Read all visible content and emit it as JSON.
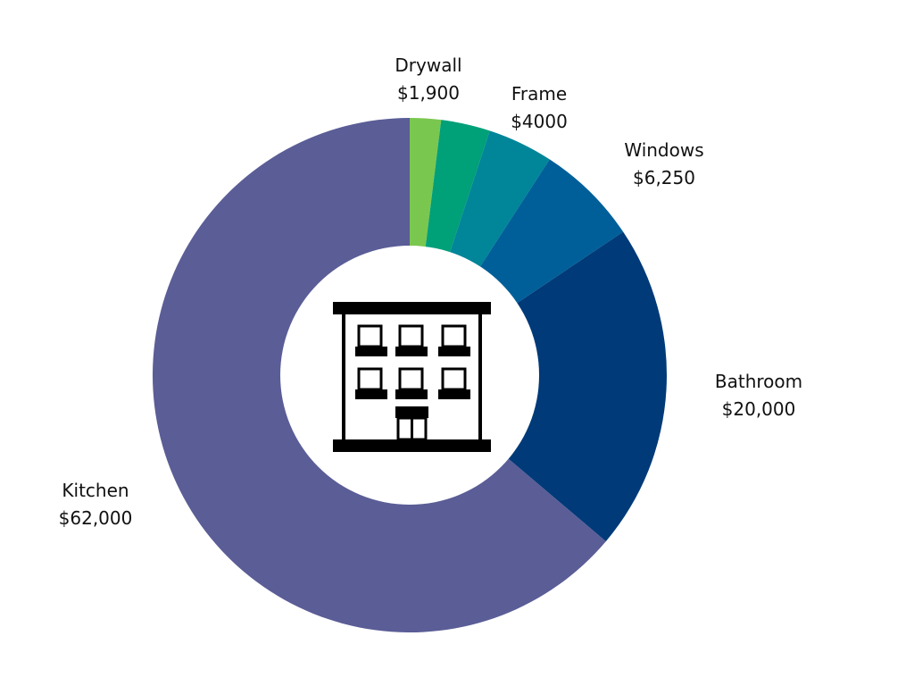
{
  "chart_data": {
    "type": "pie",
    "variant": "donut",
    "title": "",
    "categories": [
      "Drywall",
      "Frame",
      "Windows",
      "Bathroom",
      "Kitchen"
    ],
    "value_labels": [
      "$1,900",
      "$4000",
      "$6,250",
      "$20,000",
      "$62,000"
    ],
    "slices": [
      {
        "label": "Drywall",
        "value_label": "$1,900",
        "value": 1900,
        "color": "#7ac74f"
      },
      {
        "label": "",
        "value_label": "",
        "value": 3000,
        "color": "#00a079"
      },
      {
        "label": "Frame",
        "value_label": "$4000",
        "value": 4000,
        "color": "#008599"
      },
      {
        "label": "Windows",
        "value_label": "$6,250",
        "value": 6250,
        "color": "#005f99"
      },
      {
        "label": "Bathroom",
        "value_label": "$20,000",
        "value": 20000,
        "color": "#003a78"
      },
      {
        "label": "Kitchen",
        "value_label": "$62,000",
        "value": 62000,
        "color": "#5a5d96"
      }
    ],
    "legend": "none",
    "center_icon": "apartment-building-icon"
  }
}
